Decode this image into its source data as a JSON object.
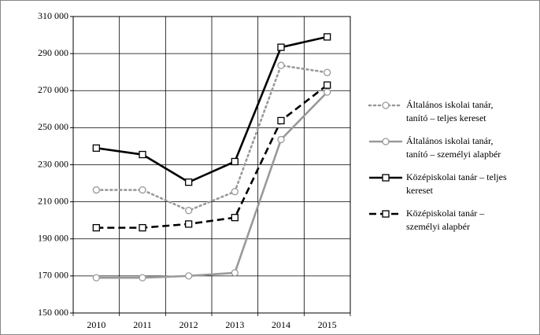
{
  "chart_data": {
    "type": "line",
    "categories": [
      "2010",
      "2011",
      "2012",
      "2013",
      "2014",
      "2015"
    ],
    "ylim": [
      150000,
      310000
    ],
    "yticks": [
      {
        "value": 150000,
        "label": "150 000"
      },
      {
        "value": 170000,
        "label": "170 000"
      },
      {
        "value": 190000,
        "label": "190 000"
      },
      {
        "value": 210000,
        "label": "210 000"
      },
      {
        "value": 230000,
        "label": "230 000"
      },
      {
        "value": 250000,
        "label": "250 000"
      },
      {
        "value": 270000,
        "label": "270 000"
      },
      {
        "value": 290000,
        "label": "290 000"
      },
      {
        "value": 310000,
        "label": "310 000"
      }
    ],
    "grid": true,
    "legend": "right",
    "series": [
      {
        "name": "Általános iskolai tanár, tanító – teljes kereset",
        "color": "#999999",
        "style": "dotted",
        "marker": "circle",
        "values": [
          216400,
          216400,
          205300,
          215500,
          283600,
          279800
        ]
      },
      {
        "name": "Általános iskolai tanár, tanító – személyi alapbér",
        "color": "#999999",
        "style": "solid",
        "marker": "circle",
        "values": [
          169000,
          169000,
          170000,
          171700,
          243600,
          269200
        ]
      },
      {
        "name": "Középiskolai tanár – teljes kereset",
        "color": "#000000",
        "style": "solid",
        "marker": "square",
        "values": [
          239000,
          235500,
          220600,
          231700,
          293400,
          299000
        ]
      },
      {
        "name": "Középiskolai tanár – személyi alapbér",
        "color": "#000000",
        "style": "dashed",
        "marker": "square",
        "values": [
          196000,
          196000,
          198000,
          201500,
          253800,
          273000
        ]
      }
    ]
  }
}
